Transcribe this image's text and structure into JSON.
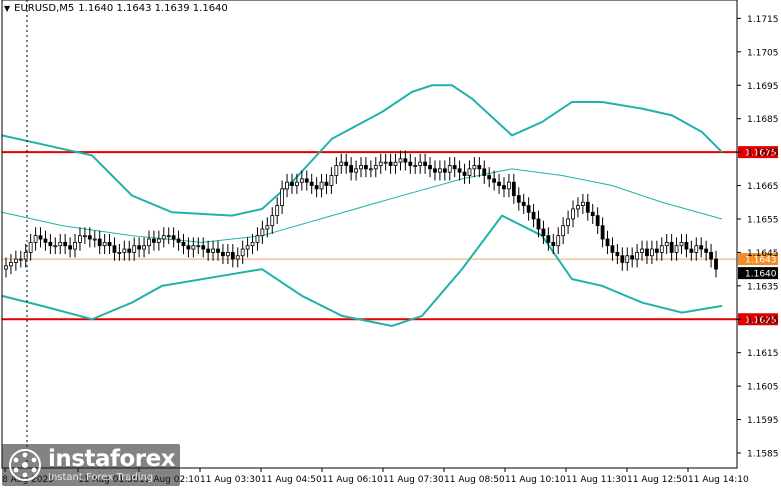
{
  "header": {
    "symbol": "EURUSD,M5",
    "ohlc": "1.1640 1.1643 1.1639 1.1640"
  },
  "logo": {
    "name": "instaforex",
    "tagline": "Instant Forex Trading"
  },
  "colors": {
    "candle": "#000000",
    "bollinger": "#20b2aa",
    "level_line": "#e00000",
    "level_label_bg": "#e00000",
    "ask_line": "#f0a060",
    "ask_label_bg": "#f28c28",
    "bid_label_bg": "#000000",
    "axis": "#000000"
  },
  "chart_data": {
    "type": "candlestick",
    "ylim": [
      1.1582,
      1.1722
    ],
    "y_ticks": [
      "1.1715",
      "1.1705",
      "1.1695",
      "1.1685",
      "1.1675",
      "1.1665",
      "1.1655",
      "1.1645",
      "1.1635",
      "1.1625",
      "1.1615",
      "1.1605",
      "1.1595",
      "1.1585"
    ],
    "x_ticks": [
      "8 Aug 2025",
      "11 Aug 01:30",
      "11 Aug 02:10",
      "11 Aug 03:30",
      "11 Aug 04:50",
      "11 Aug 06:10",
      "11 Aug 07:30",
      "11 Aug 08:50",
      "11 Aug 10:10",
      "11 Aug 11:30",
      "11 Aug 12:50",
      "11 Aug 14:10"
    ],
    "levels": [
      {
        "label": "1.1675",
        "value": 1.1675
      },
      {
        "label": "1.1625",
        "value": 1.1625
      }
    ],
    "ask": {
      "label": "1.1643",
      "value": 1.1643
    },
    "bid": {
      "label": "1.1640",
      "value": 1.164
    },
    "close": [
      1.1641,
      1.1642,
      1.1643,
      1.1643,
      1.1645,
      1.1648,
      1.165,
      1.1649,
      1.1648,
      1.1647,
      1.1647,
      1.1648,
      1.1647,
      1.1646,
      1.1648,
      1.165,
      1.165,
      1.1649,
      1.1649,
      1.1647,
      1.1648,
      1.1647,
      1.1645,
      1.1645,
      1.1646,
      1.1645,
      1.1647,
      1.1646,
      1.1647,
      1.1649,
      1.1648,
      1.1649,
      1.165,
      1.165,
      1.1649,
      1.1648,
      1.1647,
      1.1646,
      1.1647,
      1.1647,
      1.1646,
      1.1645,
      1.1646,
      1.1645,
      1.1644,
      1.1645,
      1.1643,
      1.1644,
      1.1646,
      1.1647,
      1.1648,
      1.165,
      1.1652,
      1.1653,
      1.1656,
      1.1659,
      1.1664,
      1.1666,
      1.1665,
      1.1666,
      1.1667,
      1.1666,
      1.1665,
      1.1664,
      1.1666,
      1.1665,
      1.1668,
      1.1671,
      1.1672,
      1.1671,
      1.1669,
      1.167,
      1.1671,
      1.167,
      1.167,
      1.1671,
      1.1672,
      1.1672,
      1.1671,
      1.1672,
      1.1673,
      1.1672,
      1.1671,
      1.1671,
      1.1672,
      1.1671,
      1.167,
      1.1669,
      1.167,
      1.1669,
      1.1671,
      1.167,
      1.1669,
      1.1668,
      1.167,
      1.1671,
      1.167,
      1.1668,
      1.1667,
      1.1666,
      1.1665,
      1.1664,
      1.1666,
      1.1662,
      1.166,
      1.1659,
      1.1657,
      1.1655,
      1.1652,
      1.165,
      1.1648,
      1.1647,
      1.165,
      1.1653,
      1.1655,
      1.1658,
      1.1659,
      1.166,
      1.1657,
      1.1656,
      1.1653,
      1.1649,
      1.1647,
      1.1645,
      1.1644,
      1.1642,
      1.1644,
      1.1643,
      1.1645,
      1.1646,
      1.1644,
      1.1646,
      1.1645,
      1.1647,
      1.1648,
      1.1645,
      1.1647,
      1.1648,
      1.1646,
      1.1645,
      1.1647,
      1.1646,
      1.1645,
      1.1643,
      1.164
    ],
    "bollinger": {
      "upper": [
        [
          0,
          1.168
        ],
        [
          30,
          1.1678
        ],
        [
          90,
          1.1674
        ],
        [
          130,
          1.1662
        ],
        [
          170,
          1.1657
        ],
        [
          230,
          1.1656
        ],
        [
          260,
          1.1658
        ],
        [
          290,
          1.1666
        ],
        [
          330,
          1.1679
        ],
        [
          380,
          1.1687
        ],
        [
          410,
          1.1693
        ],
        [
          430,
          1.1695
        ],
        [
          450,
          1.1695
        ],
        [
          470,
          1.1691
        ],
        [
          510,
          1.168
        ],
        [
          540,
          1.1684
        ],
        [
          570,
          1.169
        ],
        [
          600,
          1.169
        ],
        [
          640,
          1.1688
        ],
        [
          670,
          1.1686
        ],
        [
          700,
          1.1681
        ],
        [
          720,
          1.1675
        ]
      ],
      "middle": [
        [
          0,
          1.1657
        ],
        [
          60,
          1.1653
        ],
        [
          130,
          1.165
        ],
        [
          200,
          1.1648
        ],
        [
          260,
          1.165
        ],
        [
          330,
          1.1656
        ],
        [
          400,
          1.1662
        ],
        [
          460,
          1.1667
        ],
        [
          510,
          1.167
        ],
        [
          560,
          1.1668
        ],
        [
          610,
          1.1665
        ],
        [
          660,
          1.166
        ],
        [
          720,
          1.1655
        ]
      ],
      "lower": [
        [
          0,
          1.1632
        ],
        [
          40,
          1.1629
        ],
        [
          90,
          1.1625
        ],
        [
          130,
          1.163
        ],
        [
          160,
          1.1635
        ],
        [
          220,
          1.1638
        ],
        [
          260,
          1.164
        ],
        [
          300,
          1.1632
        ],
        [
          340,
          1.1626
        ],
        [
          390,
          1.1623
        ],
        [
          420,
          1.1626
        ],
        [
          460,
          1.164
        ],
        [
          500,
          1.1656
        ],
        [
          540,
          1.165
        ],
        [
          570,
          1.1637
        ],
        [
          600,
          1.1635
        ],
        [
          640,
          1.163
        ],
        [
          680,
          1.1627
        ],
        [
          720,
          1.1629
        ]
      ]
    }
  }
}
